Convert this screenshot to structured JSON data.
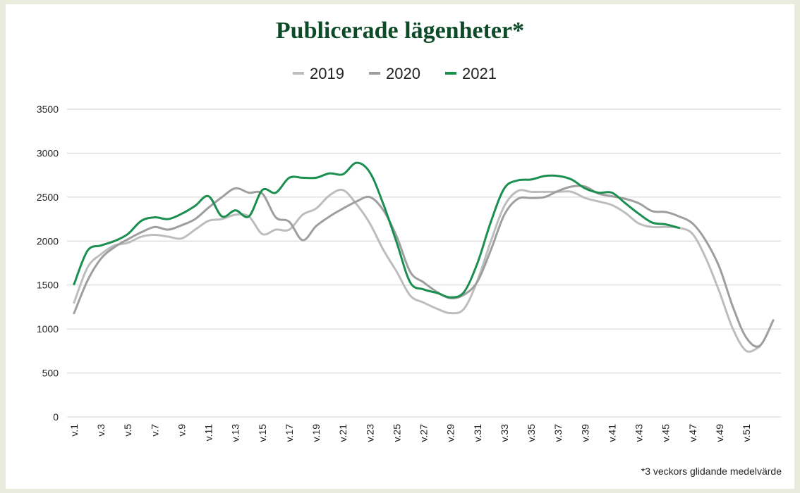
{
  "chart_data": {
    "type": "line",
    "title": "Publicerade lägenheter*",
    "footnote": "*3 veckors glidande medelvärde",
    "categories": [
      "v.1",
      null,
      "v.3",
      null,
      "v.5",
      null,
      "v.7",
      null,
      "v.9",
      null,
      "v.11",
      null,
      "v.13",
      null,
      "v.15",
      null,
      "v.17",
      null,
      "v.19",
      null,
      "v.21",
      null,
      "v.23",
      null,
      "v.25",
      null,
      "v.27",
      null,
      "v.29",
      null,
      "v.31",
      null,
      "v.33",
      null,
      "v.35",
      null,
      "v.37",
      null,
      "v.39",
      null,
      "v.41",
      null,
      "v.43",
      null,
      "v.45",
      null,
      "v.47",
      null,
      "v.49",
      null,
      "v.51",
      null,
      null
    ],
    "series": [
      {
        "name": "2019",
        "color": "#bdbdbd",
        "values": [
          1300,
          1700,
          1850,
          1950,
          1980,
          2050,
          2070,
          2050,
          2030,
          2130,
          2230,
          2250,
          2300,
          2280,
          2080,
          2130,
          2130,
          2300,
          2370,
          2520,
          2580,
          2420,
          2200,
          1900,
          1650,
          1380,
          1300,
          1230,
          1180,
          1230,
          1550,
          2000,
          2400,
          2570,
          2560,
          2560,
          2560,
          2560,
          2490,
          2450,
          2410,
          2320,
          2200,
          2160,
          2160,
          2150,
          2080,
          1800,
          1420,
          1000,
          750,
          800,
          null
        ]
      },
      {
        "name": "2020",
        "color": "#9e9e9e",
        "values": [
          1180,
          1550,
          1800,
          1930,
          2020,
          2100,
          2160,
          2130,
          2180,
          2250,
          2380,
          2500,
          2600,
          2550,
          2540,
          2270,
          2220,
          2010,
          2170,
          2280,
          2370,
          2450,
          2500,
          2350,
          2050,
          1650,
          1530,
          1420,
          1350,
          1390,
          1540,
          1900,
          2300,
          2480,
          2490,
          2500,
          2570,
          2620,
          2620,
          2540,
          2510,
          2480,
          2430,
          2340,
          2330,
          2280,
          2200,
          2000,
          1700,
          1250,
          900,
          810,
          1100
        ]
      },
      {
        "name": "2021",
        "color": "#1a8f50",
        "values": [
          1510,
          1890,
          1950,
          2000,
          2080,
          2230,
          2270,
          2250,
          2310,
          2400,
          2510,
          2280,
          2350,
          2280,
          2580,
          2550,
          2720,
          2720,
          2720,
          2770,
          2760,
          2890,
          2780,
          2420,
          1980,
          1530,
          1450,
          1410,
          1360,
          1420,
          1750,
          2220,
          2600,
          2690,
          2700,
          2740,
          2740,
          2700,
          2600,
          2550,
          2550,
          2430,
          2310,
          2210,
          2190,
          2150,
          null,
          null,
          null,
          null,
          null,
          null,
          null
        ]
      }
    ],
    "ylim": [
      0,
      3500
    ],
    "yticks": [
      0,
      500,
      1000,
      1500,
      2000,
      2500,
      3000,
      3500
    ],
    "grid": true,
    "legend": "top"
  }
}
